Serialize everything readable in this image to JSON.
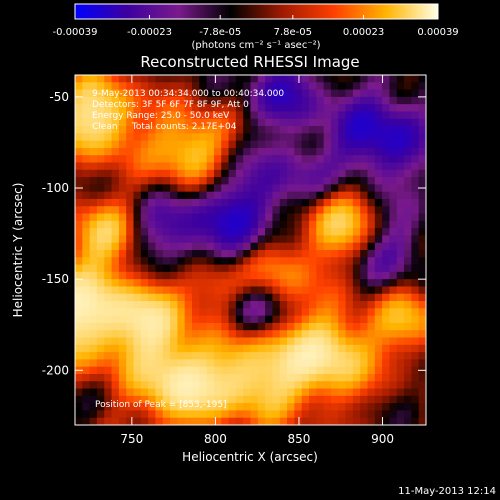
{
  "chart_data": {
    "type": "heatmap",
    "title": "Reconstructed RHESSI Image",
    "xlabel": "Heliocentric X (arcsec)",
    "ylabel": "Heliocentric Y (arcsec)",
    "xlim": [
      716,
      926
    ],
    "ylim": [
      -230,
      -38
    ],
    "x_ticks": [
      750,
      800,
      850,
      900
    ],
    "y_ticks": [
      -50,
      -100,
      -150,
      -200
    ],
    "colorbar": {
      "range": [
        -0.00039,
        0.00039
      ],
      "tick_values": [
        -0.00039,
        -0.00023,
        -7.8e-05,
        7.8e-05,
        0.00023,
        0.00039
      ],
      "tick_labels": [
        "-0.00039",
        "-0.00023",
        "-7.8e-05",
        "7.8e-05",
        "0.00023",
        "0.00039"
      ],
      "unit_label": "(photons cm⁻² s⁻¹ asec⁻²)"
    },
    "annotations": {
      "time": "9-May-2013 00:34:34.000 to 00:40:34.000",
      "detectors": "Detectors: 3F 5F 6F 7F 8F 9F, Att 0",
      "energy": "Energy Range: 25.0 - 50.0 keV",
      "clean": "Clean     Total counts: 2.17E+04",
      "position": "Position of Peak = [853,-195]"
    },
    "footer_date": "11-May-2013 12:14",
    "colormap": [
      "#0000ff",
      "#3c00a0",
      "#7a1a8c",
      "#000000",
      "#a01a00",
      "#ff4000",
      "#ffb400",
      "#ffffe6"
    ]
  }
}
